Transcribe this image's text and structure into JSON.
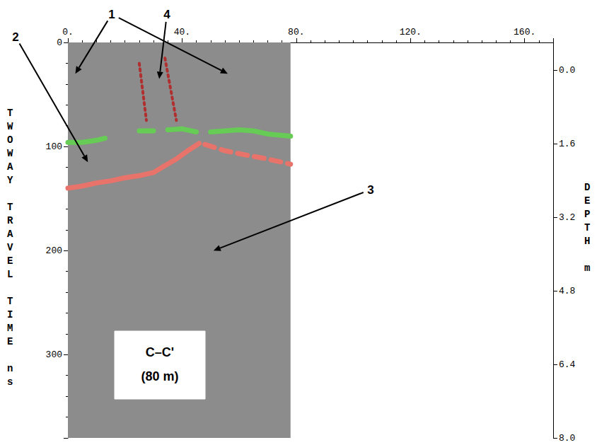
{
  "chart_data": {
    "type": "line",
    "ylabel": "TWOWAY TRAVEL TIME ns",
    "y2label": "DEPTH m",
    "xlim": [
      0,
      170
    ],
    "xticks": [
      {
        "value": 0,
        "label": "0."
      },
      {
        "value": 40,
        "label": "40."
      },
      {
        "value": 80,
        "label": "80."
      },
      {
        "value": 120,
        "label": "120."
      },
      {
        "value": 160,
        "label": "160."
      }
    ],
    "ylim": [
      0,
      380
    ],
    "yticks": [
      0,
      100,
      200,
      300
    ],
    "y2lim": [
      -0.6,
      8.0
    ],
    "y2ticks": [
      {
        "value": 0,
        "label": "0.0"
      },
      1.6,
      3.2,
      4.8,
      6.4,
      {
        "value": 8,
        "label": "8.0"
      }
    ],
    "grid": false,
    "radargram": {
      "x": [
        0,
        78
      ],
      "t": [
        0,
        380
      ],
      "color": "#8c8c8c"
    },
    "series": [
      {
        "color": "#66cc55",
        "line_style": "solid",
        "x": [
          0,
          5,
          10,
          13,
          18,
          25,
          30,
          32,
          35,
          40,
          45,
          48,
          50,
          55,
          60,
          65,
          70,
          78
        ],
        "values": [
          96,
          96,
          94,
          92,
          null,
          85,
          85,
          null,
          84,
          83,
          86,
          null,
          86,
          85,
          84,
          85,
          88,
          90
        ]
      },
      {
        "color": "#e8736a",
        "line_style": "solid",
        "x": [
          0,
          5,
          10,
          15,
          20,
          25,
          30,
          33,
          38,
          42,
          46
        ],
        "values": [
          140,
          138,
          135,
          133,
          130,
          128,
          125,
          120,
          112,
          104,
          97
        ]
      },
      {
        "color": "#e8736a",
        "line_style": "dashed",
        "x": [
          48,
          55,
          62,
          70,
          78
        ],
        "values": [
          98,
          104,
          108,
          112,
          117
        ]
      },
      {
        "color": "#b03030",
        "line_style": "dotted",
        "x": [
          25,
          27.5
        ],
        "values": [
          20,
          75
        ]
      },
      {
        "color": "#b03030",
        "line_style": "dotted",
        "x": [
          34,
          38
        ],
        "values": [
          15,
          75
        ]
      }
    ],
    "annotations": [
      {
        "text": "1",
        "targets": [
          [
            2.6,
            30
          ],
          [
            56,
            30
          ]
        ]
      },
      {
        "text": "2",
        "targets": [
          [
            7,
            115
          ]
        ]
      },
      {
        "text": "3",
        "targets": [
          [
            51,
            200
          ]
        ]
      },
      {
        "text": "4",
        "targets": [
          [
            32,
            35
          ]
        ]
      }
    ],
    "box_text": [
      "C–C'",
      "(80 m)"
    ]
  }
}
